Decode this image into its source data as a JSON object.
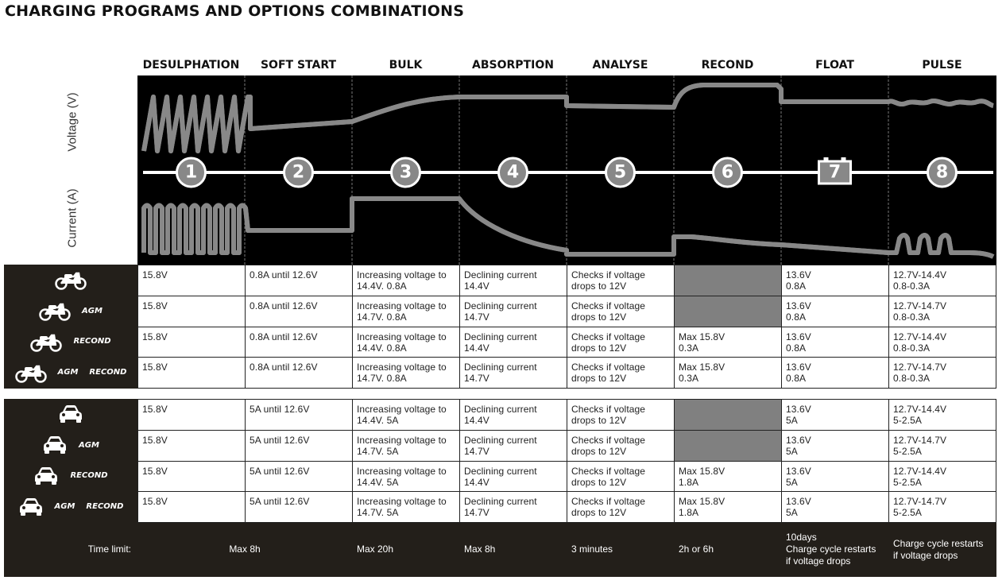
{
  "title": "CHARGING PROGRAMS AND OPTIONS COMBINATIONS",
  "stages": [
    {
      "name": "DESULPHATION",
      "number": 1
    },
    {
      "name": "SOFT START",
      "number": 2
    },
    {
      "name": "BULK",
      "number": 3
    },
    {
      "name": "ABSORPTION",
      "number": 4
    },
    {
      "name": "ANALYSE",
      "number": 5
    },
    {
      "name": "RECOND",
      "number": 6
    },
    {
      "name": "FLOAT",
      "number": 7
    },
    {
      "name": "PULSE",
      "number": 8
    }
  ],
  "axis_labels": {
    "voltage": "Voltage (V)",
    "current": "Current (A)"
  },
  "groups": [
    {
      "rows": [
        {
          "options": [],
          "cells": [
            "15.8V",
            "0.8A until 12.6V",
            "Increasing voltage to\n14.4V. 0.8A",
            "Declining current\n14.4V",
            "Checks if voltage\ndrops to 12V",
            null,
            "13.6V\n0.8A",
            "12.7V-14.4V\n0.8-0.3A"
          ]
        },
        {
          "options": [
            "AGM"
          ],
          "cells": [
            "15.8V",
            "0.8A until 12.6V",
            "Increasing voltage to\n14.7V. 0.8A",
            "Declining current\n14.7V",
            "Checks if voltage\ndrops to 12V",
            null,
            "13.6V\n0.8A",
            "12.7V-14.7V\n0.8-0.3A"
          ]
        },
        {
          "options": [
            "RECOND"
          ],
          "cells": [
            "15.8V",
            "0.8A until 12.6V",
            "Increasing voltage to\n14.4V. 0.8A",
            "Declining current\n14.4V",
            "Checks if voltage\ndrops to 12V",
            "Max 15.8V\n0.3A",
            "13.6V\n0.8A",
            "12.7V-14.4V\n0.8-0.3A"
          ]
        },
        {
          "options": [
            "AGM",
            "RECOND"
          ],
          "cells": [
            "15.8V",
            "0.8A until 12.6V",
            "Increasing voltage to\n14.7V. 0.8A",
            "Declining current\n14.7V",
            "Checks if voltage\ndrops to 12V",
            "Max 15.8V\n0.3A",
            "13.6V\n0.8A",
            "12.7V-14.7V\n0.8-0.3A"
          ]
        }
      ]
    },
    {
      "rows": [
        {
          "options": [],
          "cells": [
            "15.8V",
            "5A until 12.6V",
            "Increasing voltage to\n14.4V. 5A",
            "Declining current\n14.4V",
            "Checks if voltage\ndrops to 12V",
            null,
            "13.6V\n5A",
            "12.7V-14.4V\n5-2.5A"
          ]
        },
        {
          "options": [
            "AGM"
          ],
          "cells": [
            "15.8V",
            "5A until 12.6V",
            "Increasing voltage to\n14.7V. 5A",
            "Declining current\n14.7V",
            "Checks if voltage\ndrops to 12V",
            null,
            "13.6V\n5A",
            "12.7V-14.7V\n5-2.5A"
          ]
        },
        {
          "options": [
            "RECOND"
          ],
          "cells": [
            "15.8V",
            "5A until 12.6V",
            "Increasing voltage to\n14.4V. 5A",
            "Declining current\n14.4V",
            "Checks if voltage\ndrops to 12V",
            "Max 15.8V\n1.8A",
            "13.6V\n5A",
            "12.7V-14.4V\n5-2.5A"
          ]
        },
        {
          "options": [
            "AGM",
            "RECOND"
          ],
          "cells": [
            "15.8V",
            "5A until 12.6V",
            "Increasing voltage to\n14.7V. 5A",
            "Declining current\n14.7V",
            "Checks if voltage\ndrops to 12V",
            "Max 15.8V\n1.8A",
            "13.6V\n5A",
            "12.7V-14.7V\n5-2.5A"
          ]
        }
      ]
    }
  ],
  "time_limit": {
    "label": "Time limit:",
    "values": [
      "Max 8h",
      "Max 20h",
      "Max 8h",
      "3 minutes",
      "2h or 6h",
      "10days\nCharge cycle restarts\nif voltage drops",
      "Charge cycle restarts\nif voltage drops"
    ]
  }
}
